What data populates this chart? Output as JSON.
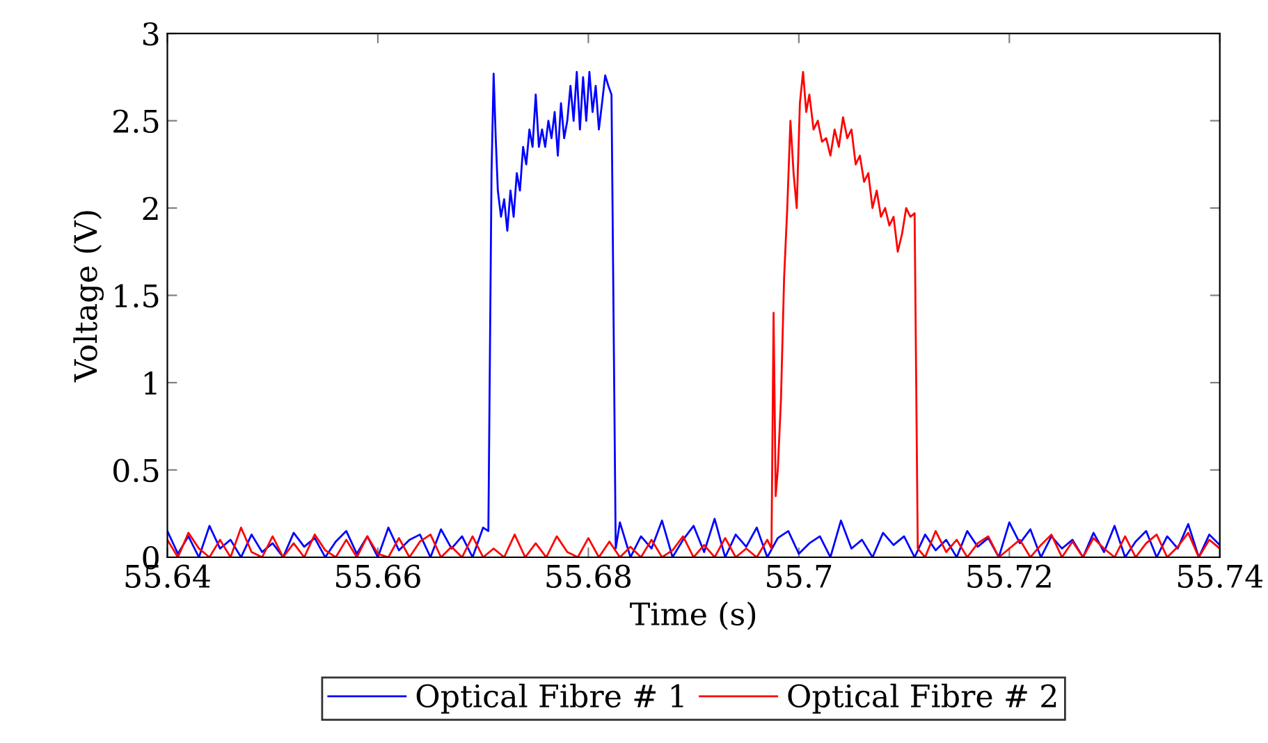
{
  "chart_data": {
    "type": "line",
    "xlabel": "Time (s)",
    "ylabel": "Voltage (V)",
    "xlim": [
      55.64,
      55.74
    ],
    "ylim": [
      0,
      3
    ],
    "xticks": [
      55.64,
      55.66,
      55.68,
      55.7,
      55.72,
      55.74
    ],
    "yticks": [
      0,
      0.5,
      1,
      1.5,
      2,
      2.5,
      3
    ],
    "grid": false,
    "legend": "bottom",
    "marker": "none",
    "line_style": "solid",
    "series": [
      {
        "name": "Optical Fibre # 1",
        "color": "#0000ff",
        "x": [
          55.64,
          55.641,
          55.642,
          55.643,
          55.644,
          55.645,
          55.646,
          55.647,
          55.648,
          55.649,
          55.65,
          55.651,
          55.652,
          55.653,
          55.654,
          55.655,
          55.656,
          55.657,
          55.658,
          55.659,
          55.66,
          55.661,
          55.662,
          55.663,
          55.664,
          55.665,
          55.666,
          55.667,
          55.668,
          55.669,
          55.67,
          55.6705,
          55.6708,
          55.671,
          55.6712,
          55.6714,
          55.6717,
          55.672,
          55.6723,
          55.6726,
          55.6729,
          55.6732,
          55.6735,
          55.6738,
          55.6741,
          55.6744,
          55.6747,
          55.675,
          55.6753,
          55.6756,
          55.6759,
          55.6762,
          55.6765,
          55.6768,
          55.6771,
          55.6774,
          55.6777,
          55.678,
          55.6783,
          55.6786,
          55.6789,
          55.6792,
          55.6795,
          55.6798,
          55.6801,
          55.6804,
          55.6807,
          55.681,
          55.6813,
          55.6816,
          55.6819,
          55.6822,
          55.6826,
          55.683,
          55.684,
          55.685,
          55.686,
          55.687,
          55.688,
          55.689,
          55.69,
          55.691,
          55.692,
          55.693,
          55.694,
          55.695,
          55.696,
          55.697,
          55.698,
          55.699,
          55.7,
          55.701,
          55.702,
          55.703,
          55.704,
          55.705,
          55.706,
          55.707,
          55.708,
          55.709,
          55.71,
          55.711,
          55.712,
          55.713,
          55.714,
          55.715,
          55.716,
          55.717,
          55.718,
          55.719,
          55.72,
          55.721,
          55.722,
          55.723,
          55.724,
          55.725,
          55.726,
          55.727,
          55.728,
          55.729,
          55.73,
          55.731,
          55.732,
          55.733,
          55.734,
          55.735,
          55.736,
          55.737,
          55.738,
          55.739,
          55.74
        ],
        "values": [
          0.15,
          0.02,
          0.12,
          0.0,
          0.18,
          0.05,
          0.1,
          0.0,
          0.13,
          0.03,
          0.08,
          0.0,
          0.14,
          0.06,
          0.11,
          0.0,
          0.09,
          0.15,
          0.02,
          0.12,
          0.0,
          0.17,
          0.04,
          0.1,
          0.13,
          0.0,
          0.16,
          0.05,
          0.12,
          0.0,
          0.17,
          0.15,
          2.2,
          2.77,
          2.4,
          2.1,
          1.95,
          2.05,
          1.87,
          2.1,
          1.95,
          2.2,
          2.1,
          2.35,
          2.25,
          2.45,
          2.35,
          2.65,
          2.35,
          2.45,
          2.35,
          2.5,
          2.4,
          2.55,
          2.3,
          2.6,
          2.4,
          2.5,
          2.7,
          2.5,
          2.78,
          2.45,
          2.75,
          2.5,
          2.78,
          2.55,
          2.7,
          2.45,
          2.6,
          2.76,
          2.7,
          2.65,
          0.05,
          0.2,
          0.0,
          0.12,
          0.05,
          0.21,
          0.0,
          0.1,
          0.18,
          0.03,
          0.22,
          0.0,
          0.13,
          0.06,
          0.17,
          0.0,
          0.11,
          0.15,
          0.02,
          0.08,
          0.12,
          0.0,
          0.21,
          0.05,
          0.1,
          0.0,
          0.14,
          0.07,
          0.12,
          0.0,
          0.13,
          0.04,
          0.1,
          0.0,
          0.15,
          0.06,
          0.11,
          0.0,
          0.2,
          0.08,
          0.16,
          0.0,
          0.12,
          0.05,
          0.1,
          0.0,
          0.14,
          0.03,
          0.18,
          0.0,
          0.09,
          0.15,
          0.0,
          0.12,
          0.05,
          0.19,
          0.0,
          0.13,
          0.07
        ]
      },
      {
        "name": "Optical Fibre # 2",
        "color": "#ff0000",
        "x": [
          55.64,
          55.641,
          55.642,
          55.643,
          55.644,
          55.645,
          55.646,
          55.647,
          55.648,
          55.649,
          55.65,
          55.651,
          55.652,
          55.653,
          55.654,
          55.655,
          55.656,
          55.657,
          55.658,
          55.659,
          55.66,
          55.661,
          55.662,
          55.663,
          55.664,
          55.665,
          55.666,
          55.667,
          55.668,
          55.669,
          55.67,
          55.671,
          55.672,
          55.673,
          55.674,
          55.675,
          55.676,
          55.677,
          55.678,
          55.679,
          55.68,
          55.681,
          55.682,
          55.683,
          55.684,
          55.685,
          55.686,
          55.687,
          55.688,
          55.689,
          55.69,
          55.691,
          55.692,
          55.693,
          55.694,
          55.695,
          55.696,
          55.697,
          55.6974,
          55.6976,
          55.6978,
          55.698,
          55.6983,
          55.6986,
          55.6989,
          55.6992,
          55.6995,
          55.6998,
          55.7001,
          55.7004,
          55.7007,
          55.701,
          55.7014,
          55.7018,
          55.7022,
          55.7026,
          55.703,
          55.7034,
          55.7038,
          55.7042,
          55.7046,
          55.705,
          55.7054,
          55.7058,
          55.7062,
          55.7066,
          55.707,
          55.7074,
          55.7078,
          55.7082,
          55.7086,
          55.709,
          55.7094,
          55.7098,
          55.7102,
          55.7106,
          55.711,
          55.7113,
          55.712,
          55.713,
          55.714,
          55.715,
          55.716,
          55.717,
          55.718,
          55.719,
          55.72,
          55.721,
          55.722,
          55.723,
          55.724,
          55.725,
          55.726,
          55.727,
          55.728,
          55.729,
          55.73,
          55.731,
          55.732,
          55.733,
          55.734,
          55.735,
          55.736,
          55.737,
          55.738,
          55.739,
          55.74
        ],
        "values": [
          0.1,
          0.0,
          0.14,
          0.05,
          0.0,
          0.1,
          0.0,
          0.17,
          0.03,
          0.0,
          0.12,
          0.0,
          0.08,
          0.0,
          0.13,
          0.04,
          0.0,
          0.1,
          0.0,
          0.12,
          0.02,
          0.0,
          0.11,
          0.0,
          0.09,
          0.13,
          0.0,
          0.06,
          0.0,
          0.12,
          0.0,
          0.05,
          0.0,
          0.13,
          0.0,
          0.08,
          0.0,
          0.12,
          0.03,
          0.0,
          0.11,
          0.0,
          0.09,
          0.0,
          0.06,
          0.0,
          0.1,
          0.0,
          0.04,
          0.12,
          0.0,
          0.07,
          0.0,
          0.11,
          0.0,
          0.05,
          0.0,
          0.1,
          0.05,
          1.4,
          0.35,
          0.5,
          0.9,
          1.6,
          2.0,
          2.5,
          2.2,
          2.0,
          2.6,
          2.78,
          2.55,
          2.65,
          2.45,
          2.5,
          2.38,
          2.4,
          2.3,
          2.45,
          2.35,
          2.52,
          2.4,
          2.45,
          2.25,
          2.3,
          2.15,
          2.2,
          2.0,
          2.1,
          1.95,
          2.0,
          1.9,
          1.95,
          1.75,
          1.85,
          2.0,
          1.95,
          1.97,
          0.05,
          0.0,
          0.15,
          0.03,
          0.1,
          0.0,
          0.08,
          0.12,
          0.0,
          0.05,
          0.1,
          0.0,
          0.07,
          0.13,
          0.0,
          0.09,
          0.0,
          0.11,
          0.05,
          0.0,
          0.12,
          0.0,
          0.08,
          0.13,
          0.0,
          0.06,
          0.14,
          0.0,
          0.1,
          0.05
        ]
      }
    ]
  }
}
